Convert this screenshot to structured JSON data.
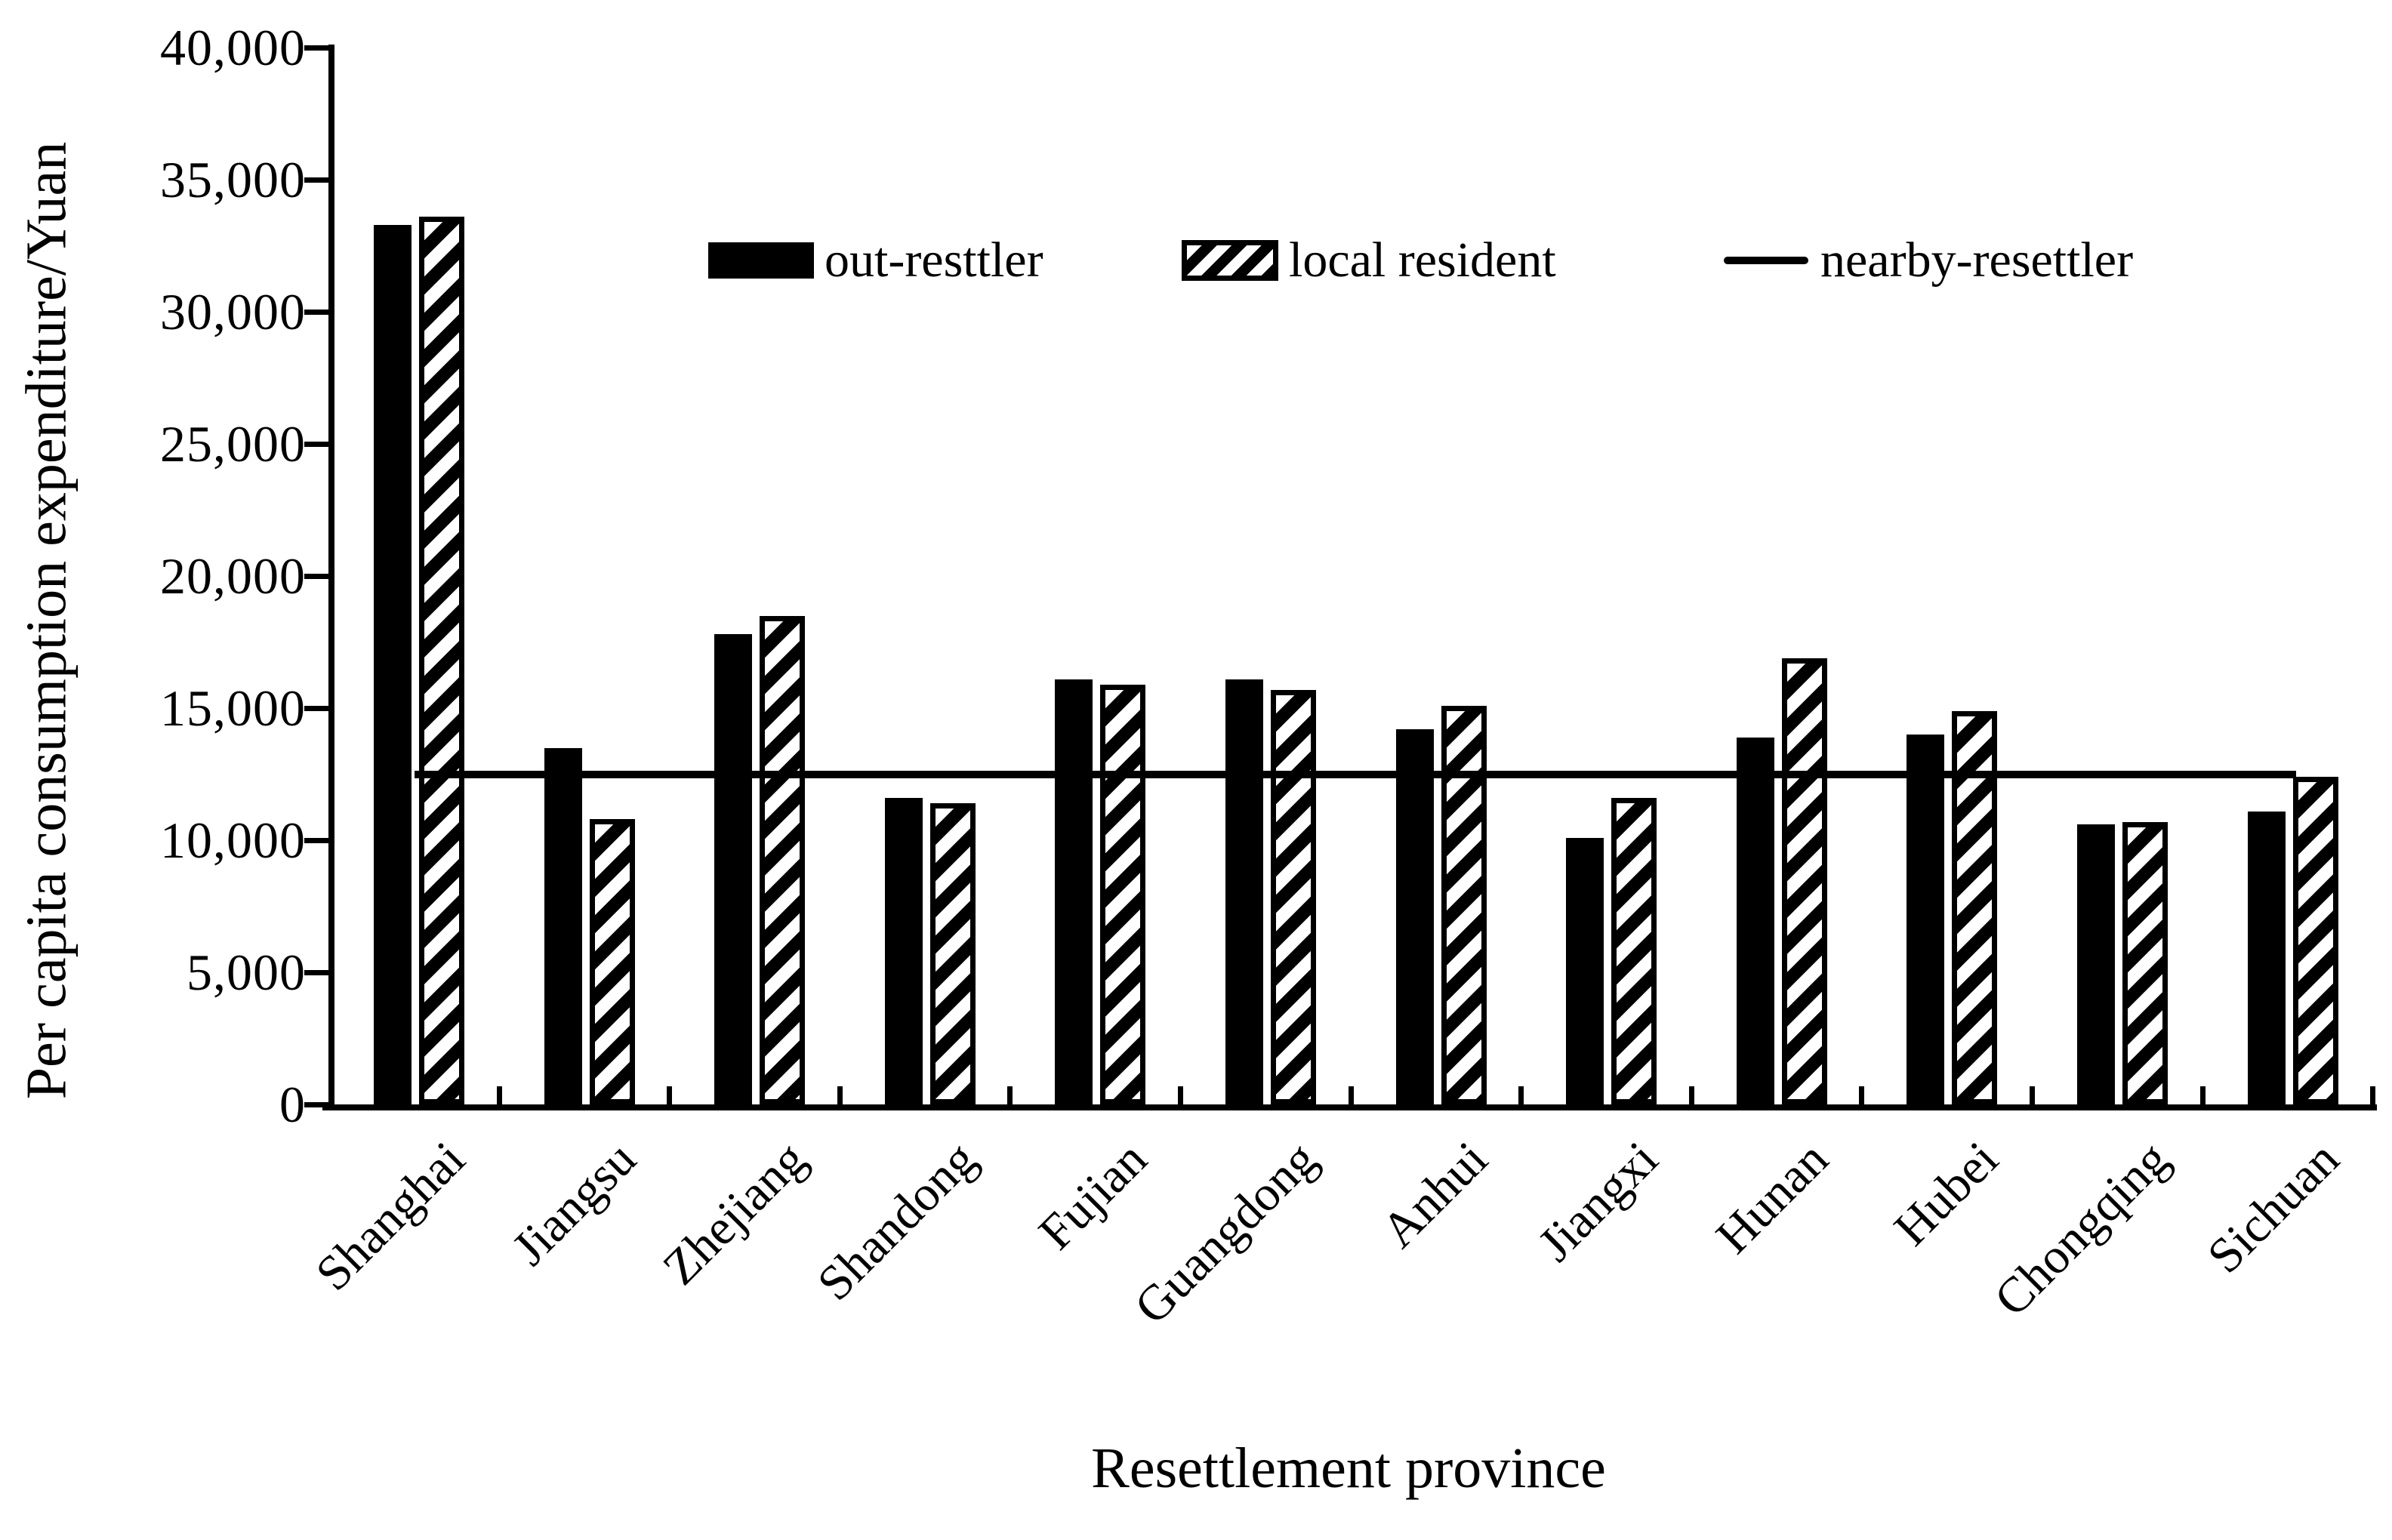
{
  "page": {
    "background": "#ffffff",
    "ink": "#000000"
  },
  "y_axis": {
    "title": "Per capita consumption expenditure/Yuan",
    "tick_labels": [
      "40,000",
      "35,000",
      "30,000",
      "25,000",
      "20,000",
      "15,000",
      "10,000",
      "5,000",
      "0"
    ],
    "tick_values": [
      40000,
      35000,
      30000,
      25000,
      20000,
      15000,
      10000,
      5000,
      0
    ]
  },
  "x_axis": {
    "title": "Resettlement province"
  },
  "legend": {
    "items": [
      {
        "label": "out-resttler",
        "style": "solid"
      },
      {
        "label": "local resident",
        "style": "hatched"
      },
      {
        "label": "nearby-resettler",
        "style": "line"
      }
    ]
  },
  "chart_data": {
    "type": "bar",
    "title": "",
    "xlabel": "Resettlement province",
    "ylabel": "Per capita consumption expenditure/Yuan",
    "ylim": [
      0,
      40000
    ],
    "ytick_step": 5000,
    "grid": false,
    "legend_position": "top-inside",
    "categories": [
      "Shanghai",
      "Jiangsu",
      "Zhejiang",
      "Shandong",
      "Fujian",
      "Guangdong",
      "Anhui",
      "Jiangxi",
      "Hunan",
      "Hubei",
      "Chongqing",
      "Sichuan"
    ],
    "series": [
      {
        "name": "out-resttler",
        "style": "solid-black-bar",
        "values": [
          33300,
          13500,
          17800,
          11600,
          16100,
          16100,
          14200,
          10100,
          13900,
          14000,
          10600,
          11100
        ]
      },
      {
        "name": "local resident",
        "style": "hatched-bar",
        "values": [
          33600,
          10800,
          18500,
          11400,
          15900,
          15700,
          15100,
          11600,
          16900,
          14900,
          10700,
          12400
        ]
      },
      {
        "name": "nearby-resettler",
        "style": "horizontal-line",
        "values": [
          12500,
          12500,
          12500,
          12500,
          12500,
          12500,
          12500,
          12500,
          12500,
          12500,
          12500,
          12500
        ]
      }
    ]
  }
}
